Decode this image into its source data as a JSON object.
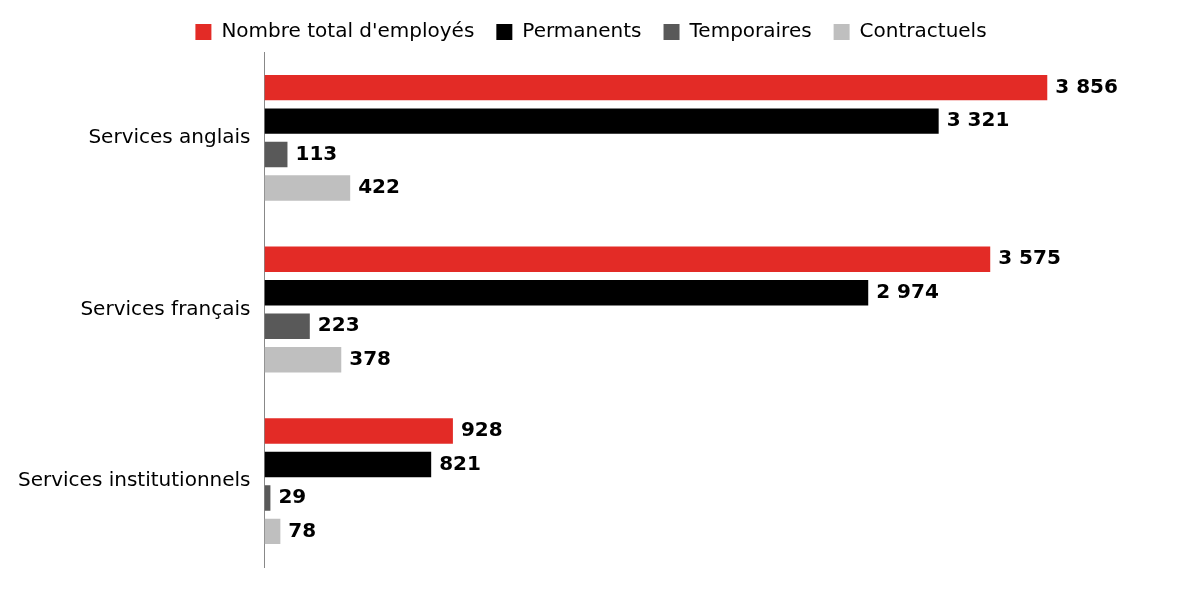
{
  "chart_data": {
    "type": "bar",
    "orientation": "horizontal",
    "categories": [
      "Services anglais",
      "Services français",
      "Services institutionnels"
    ],
    "series": [
      {
        "name": "Nombre total d'employés",
        "color": "#e32b26",
        "values": [
          3856,
          3575,
          928
        ],
        "value_labels": [
          "3 856",
          "3 575",
          "928"
        ]
      },
      {
        "name": "Permanents",
        "color": "#000000",
        "values": [
          3321,
          2974,
          821
        ],
        "value_labels": [
          "3 321",
          "2 974",
          "821"
        ]
      },
      {
        "name": "Temporaires",
        "color": "#595959",
        "values": [
          113,
          223,
          29
        ],
        "value_labels": [
          "113",
          "223",
          "29"
        ]
      },
      {
        "name": "Contractuels",
        "color": "#bfbfbf",
        "values": [
          422,
          378,
          78
        ],
        "value_labels": [
          "422",
          "378",
          "78"
        ]
      }
    ],
    "legend": "top",
    "tick_labels": "y"
  }
}
